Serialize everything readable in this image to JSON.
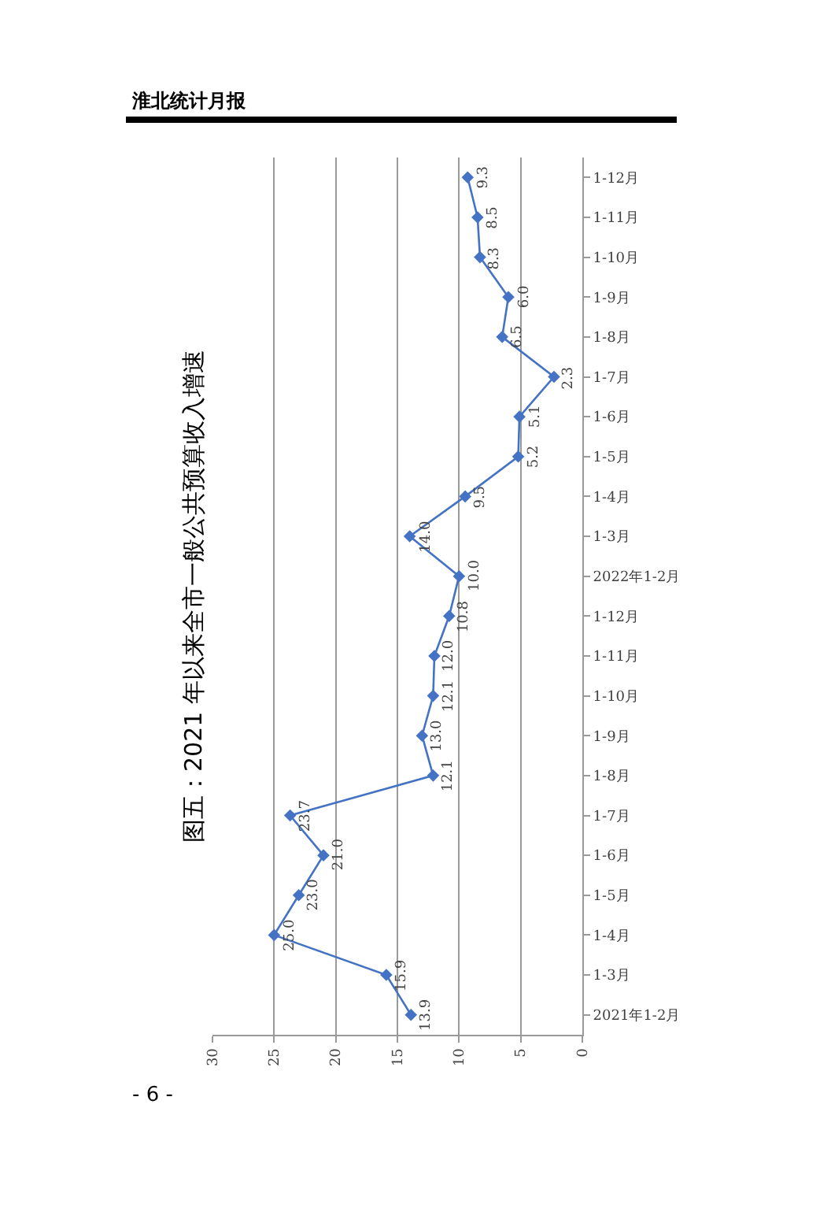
{
  "chart_data": {
    "type": "line",
    "orientation": "horizontal",
    "title": "图五：2021 年以来全市一般公共预算收入增速",
    "categories": [
      "1-12月",
      "1-11月",
      "1-10月",
      "1-9月",
      "1-8月",
      "1-7月",
      "1-6月",
      "1-5月",
      "1-4月",
      "1-3月",
      "2022年1-2月",
      "1-12月",
      "1-11月",
      "1-10月",
      "1-9月",
      "1-8月",
      "1-7月",
      "1-6月",
      "1-5月",
      "1-4月",
      "1-3月",
      "2021年1-2月"
    ],
    "series": [
      {
        "color": "#4472c4",
        "values": [
          9.3,
          8.5,
          8.3,
          6.0,
          6.5,
          2.3,
          5.1,
          5.2,
          9.5,
          14.0,
          10.0,
          10.8,
          12.0,
          12.1,
          13.0,
          12.1,
          23.7,
          21.0,
          23.0,
          25.0,
          15.9,
          13.9
        ],
        "value_labels": [
          "9.3",
          "8.5",
          "8.3",
          "6.0",
          "6.5",
          "2.3",
          "5.1",
          "5.2",
          "9.5",
          "14.0",
          "10.0",
          "10.8",
          "12.0",
          "12.1",
          "13.0",
          "12.1",
          "23.7",
          "21.0",
          "23.0",
          "25.0",
          "15.9",
          "13.9"
        ]
      }
    ],
    "xlim": [
      30,
      0
    ],
    "xticks": [
      30,
      25,
      20,
      15,
      10,
      5,
      0
    ],
    "grid": "x",
    "marker": "diamond",
    "line_style": "solid",
    "legend": false,
    "annotations": [
      "淮北统计月报",
      "- 6 -"
    ]
  }
}
